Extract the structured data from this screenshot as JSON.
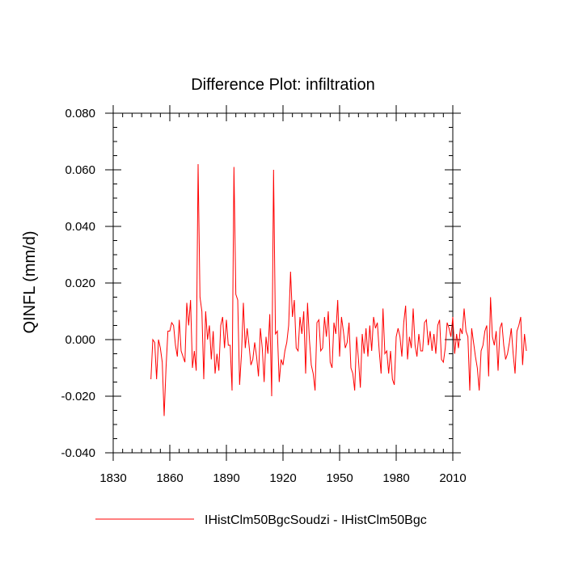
{
  "chart_data": {
    "type": "line",
    "title": "Difference Plot: infiltration",
    "xlabel": "",
    "ylabel": "QINFL  (mm/d)",
    "xlim": [
      1830,
      2010
    ],
    "ylim": [
      -0.04,
      0.08
    ],
    "x_ticks": [
      1830,
      1860,
      1890,
      1920,
      1950,
      1980,
      2010
    ],
    "x_tick_labels": [
      "1830",
      "1860",
      "1890",
      "1920",
      "1950",
      "1980",
      "2010"
    ],
    "y_ticks": [
      -0.04,
      -0.02,
      0.0,
      0.02,
      0.04,
      0.06,
      0.08
    ],
    "y_tick_labels": [
      "-0.040",
      "-0.020",
      "0.000",
      "0.020",
      "0.040",
      "0.060",
      "0.080"
    ],
    "grid": false,
    "legend_position": "bottom",
    "series": [
      {
        "name": "IHistClm50BgcSoudzi - IHistClm50Bgc",
        "color": "#ff0000",
        "x_start": 1850,
        "x_step": 1,
        "values": [
          -0.014,
          0.0,
          -0.001,
          -0.014,
          0.0,
          -0.003,
          -0.008,
          -0.027,
          -0.01,
          0.003,
          0.003,
          0.006,
          0.005,
          -0.002,
          -0.006,
          0.007,
          -0.004,
          -0.006,
          -0.008,
          0.013,
          0.005,
          0.014,
          -0.01,
          -0.004,
          -0.011,
          0.062,
          0.015,
          0.01,
          -0.014,
          0.01,
          0.0,
          0.005,
          -0.007,
          0.003,
          -0.012,
          -0.005,
          -0.011,
          0.005,
          0.008,
          -0.003,
          0.007,
          -0.002,
          -0.002,
          -0.018,
          0.061,
          0.016,
          0.014,
          -0.016,
          -0.005,
          0.013,
          -0.003,
          0.004,
          -0.002,
          -0.009,
          -0.007,
          -0.001,
          -0.006,
          -0.013,
          0.004,
          -0.003,
          -0.015,
          0.001,
          -0.005,
          0.009,
          -0.02,
          0.06,
          0.002,
          0.003,
          -0.015,
          -0.007,
          -0.009,
          -0.004,
          -0.001,
          0.005,
          0.024,
          0.008,
          0.014,
          -0.003,
          -0.004,
          0.008,
          0.002,
          0.01,
          -0.012,
          0.013,
          0.0,
          -0.009,
          -0.012,
          -0.018,
          0.006,
          0.007,
          -0.004,
          -0.003,
          0.008,
          0.001,
          0.01,
          -0.008,
          -0.01,
          0.006,
          0.002,
          0.014,
          -0.006,
          0.008,
          0.003,
          -0.003,
          -0.001,
          0.006,
          -0.01,
          -0.012,
          -0.018,
          0.001,
          -0.007,
          -0.017,
          0.002,
          -0.005,
          0.004,
          -0.006,
          0.005,
          -0.004,
          0.008,
          0.004,
          0.006,
          -0.004,
          -0.012,
          0.011,
          -0.005,
          -0.004,
          -0.012,
          -0.004,
          -0.014,
          -0.016,
          0.001,
          0.004,
          0.001,
          -0.006,
          0.006,
          0.012,
          -0.007,
          0.001,
          -0.003,
          0.011,
          -0.002,
          -0.006,
          0.002,
          -0.004,
          -0.004,
          0.006,
          0.007,
          -0.002,
          0.003,
          -0.004,
          0.002,
          -0.005,
          0.005,
          0.007,
          -0.007,
          -0.008,
          -0.003,
          0.006,
          0.004,
          0.001,
          0.008,
          -0.005,
          0.002,
          -0.003,
          0.004,
          0.002,
          0.011,
          0.003,
          0.001,
          -0.018,
          0.004,
          -0.001,
          -0.006,
          -0.01,
          -0.018,
          -0.004,
          -0.002,
          0.003,
          0.005,
          -0.013,
          0.015,
          0.001,
          -0.002,
          0.003,
          -0.011,
          0.004,
          0.006,
          -0.002,
          -0.007,
          -0.005,
          -0.001,
          0.004,
          -0.005,
          -0.012,
          0.003,
          0.005,
          0.008,
          -0.009,
          0.002,
          -0.004
        ]
      }
    ]
  }
}
